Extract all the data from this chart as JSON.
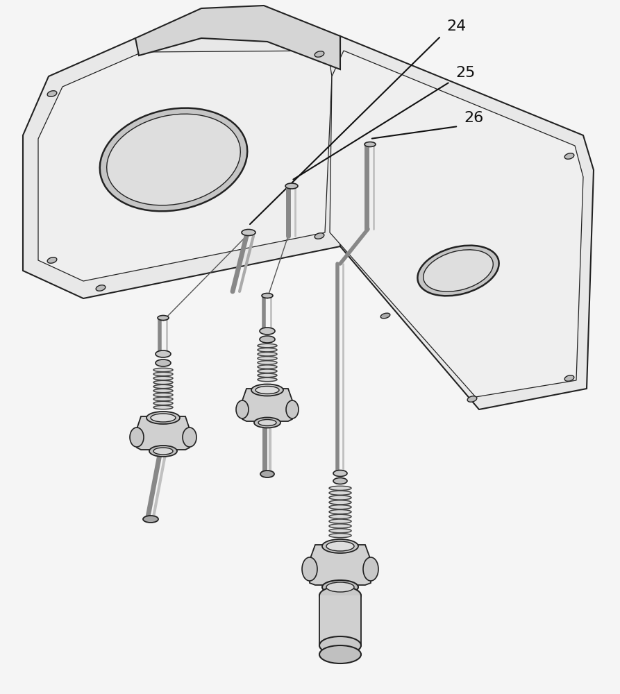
{
  "background_color": "#f5f5f5",
  "line_color": "#2a2a2a",
  "label_color": "#1a1a1a",
  "labels": [
    "24",
    "25",
    "26"
  ],
  "label_fontsize": 16,
  "fig_width": 8.93,
  "fig_height": 10.0,
  "dpi": 100,
  "plate_facecolor": "#e8e8e8",
  "plate_edge": "#2a2a2a",
  "component_fill": "#d8d8d8",
  "component_edge": "#222222"
}
